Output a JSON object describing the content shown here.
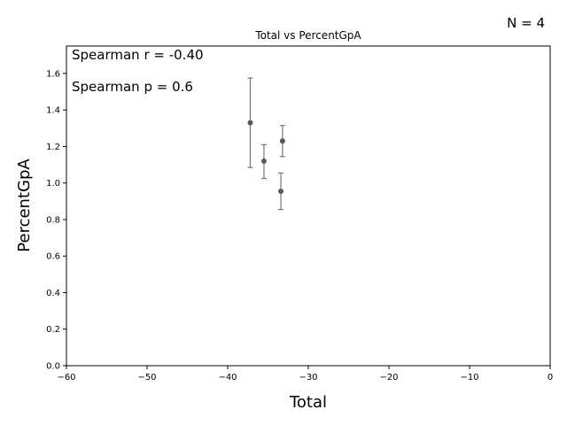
{
  "chart_data": {
    "type": "scatter",
    "title": "Total vs PercentGpA",
    "xlabel": "Total",
    "ylabel": "PercentGpA",
    "xlim": [
      -60,
      0
    ],
    "ylim": [
      0,
      1.75
    ],
    "grid": false,
    "x_ticks": [
      -60,
      -50,
      -40,
      -30,
      -20,
      -10,
      0
    ],
    "x_tick_labels": [
      "−60",
      "−50",
      "−40",
      "−30",
      "−20",
      "−10",
      "0"
    ],
    "y_ticks": [
      0,
      0.2,
      0.4,
      0.6,
      0.8,
      1.0,
      1.2,
      1.4,
      1.6
    ],
    "y_tick_labels": [
      "0.0",
      "0.2",
      "0.4",
      "0.6",
      "0.8",
      "1.0",
      "1.2",
      "1.4",
      "1.6"
    ],
    "points": [
      {
        "x": -37.2,
        "y": 1.33,
        "y_err_low": 1.085,
        "y_err_high": 1.575
      },
      {
        "x": -35.5,
        "y": 1.12,
        "y_err_low": 1.025,
        "y_err_high": 1.21
      },
      {
        "x": -33.2,
        "y": 1.23,
        "y_err_low": 1.145,
        "y_err_high": 1.315
      },
      {
        "x": -33.4,
        "y": 0.955,
        "y_err_low": 0.855,
        "y_err_high": 1.055
      }
    ],
    "marker_color": "#595959",
    "errorbar_color": "#757575",
    "annotations": {
      "spearman_r": "Spearman r = -0.40",
      "spearman_p": "Spearman p = 0.6",
      "n": "N = 4"
    }
  }
}
